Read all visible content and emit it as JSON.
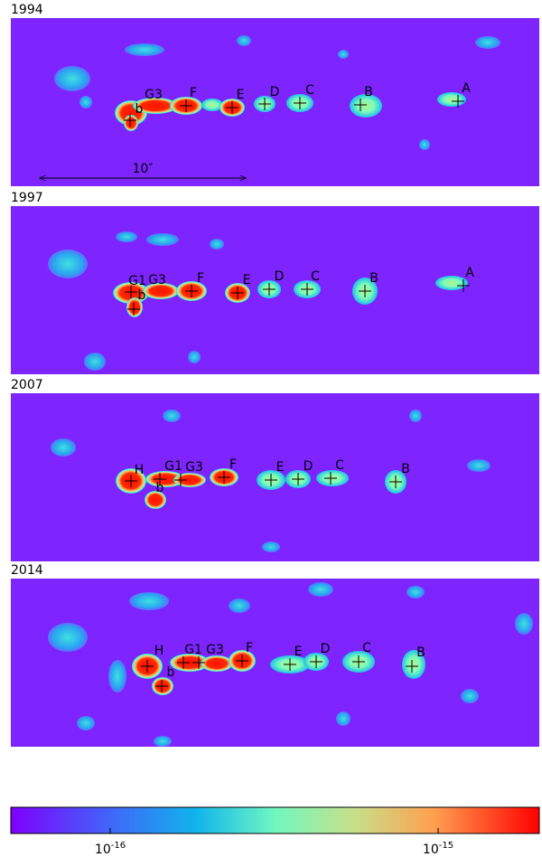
{
  "panels": [
    {
      "year": "1994",
      "knots": [
        {
          "label": "G3"
        },
        {
          "label": "b"
        },
        {
          "label": "F"
        },
        {
          "label": "E"
        },
        {
          "label": "D"
        },
        {
          "label": "C"
        },
        {
          "label": "B"
        },
        {
          "label": "A"
        }
      ]
    },
    {
      "year": "1997",
      "knots": [
        {
          "label": "G1"
        },
        {
          "label": "G3"
        },
        {
          "label": "b"
        },
        {
          "label": "F"
        },
        {
          "label": "E"
        },
        {
          "label": "D"
        },
        {
          "label": "C"
        },
        {
          "label": "B"
        },
        {
          "label": "A"
        }
      ]
    },
    {
      "year": "2007",
      "knots": [
        {
          "label": "H"
        },
        {
          "label": "G1"
        },
        {
          "label": "G3"
        },
        {
          "label": "b"
        },
        {
          "label": "F"
        },
        {
          "label": "E"
        },
        {
          "label": "D"
        },
        {
          "label": "C"
        },
        {
          "label": "B"
        }
      ]
    },
    {
      "year": "2014",
      "knots": [
        {
          "label": "H"
        },
        {
          "label": "G1"
        },
        {
          "label": "G3"
        },
        {
          "label": "b"
        },
        {
          "label": "F"
        },
        {
          "label": "E"
        },
        {
          "label": "D"
        },
        {
          "label": "C"
        },
        {
          "label": "B"
        }
      ]
    }
  ],
  "scale_bar": "10″",
  "colorbar": {
    "ticks": [
      {
        "base": "10",
        "exponent": "-16"
      },
      {
        "base": "10",
        "exponent": "-15"
      }
    ]
  }
}
